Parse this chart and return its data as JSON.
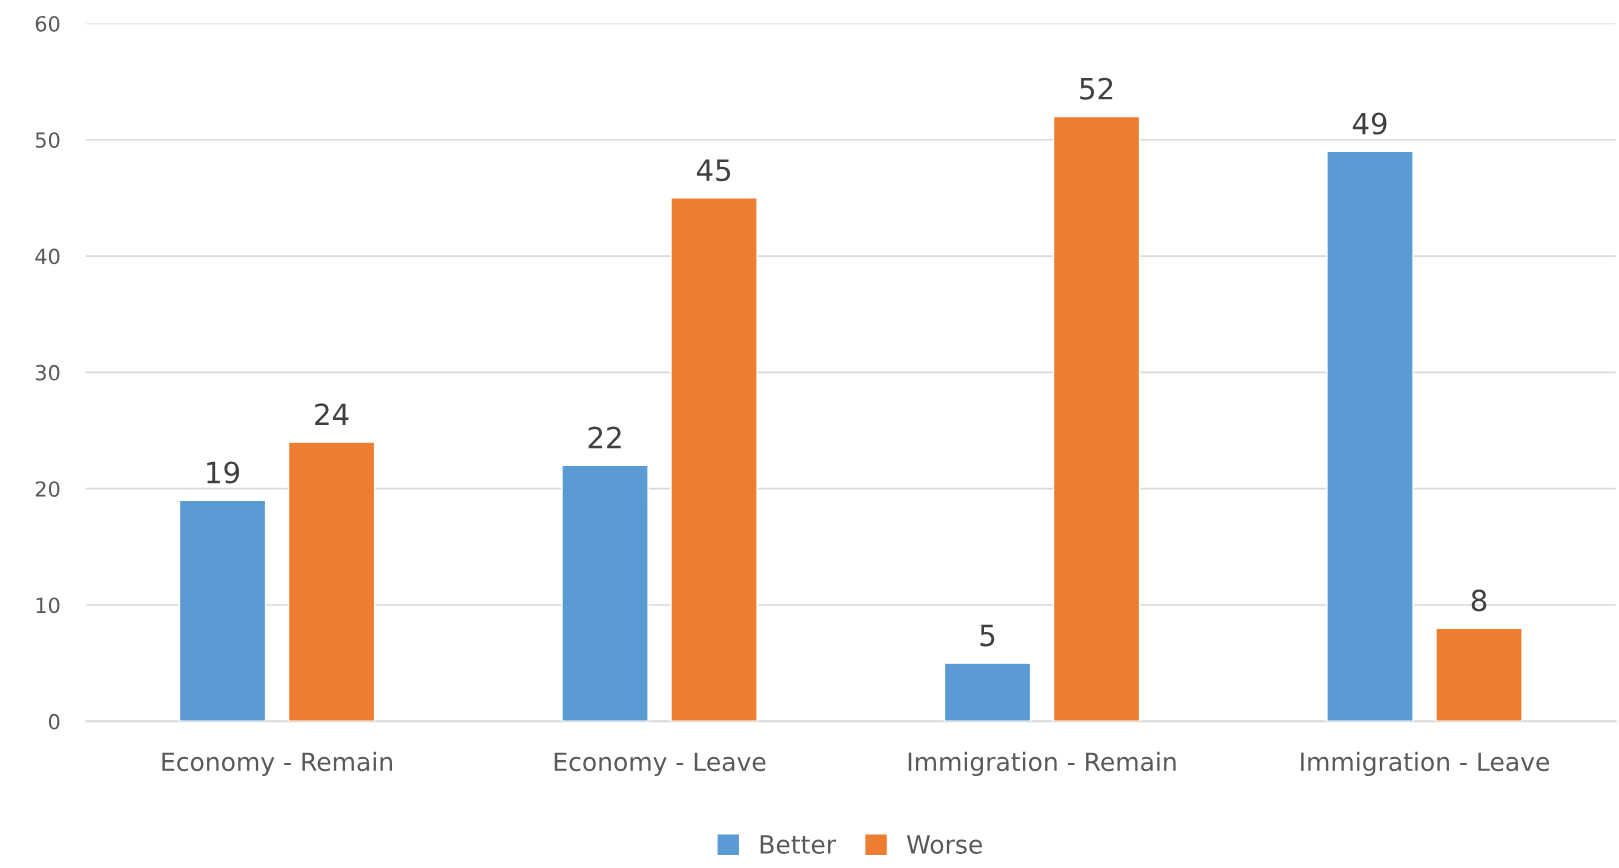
{
  "chart_data": {
    "type": "bar",
    "categories": [
      "Economy - Remain",
      "Economy - Leave",
      "Immigration - Remain",
      "Immigration - Leave"
    ],
    "series": [
      {
        "name": "Better",
        "color": "#5b9bd5",
        "values": [
          19,
          22,
          5,
          49
        ]
      },
      {
        "name": "Worse",
        "color": "#ed7d31",
        "values": [
          24,
          45,
          52,
          8
        ]
      }
    ],
    "ylim": [
      0,
      60
    ],
    "yticks": [
      0,
      10,
      20,
      30,
      40,
      50,
      60
    ],
    "grid": "y",
    "legend": "bottom",
    "data_labels": true
  }
}
